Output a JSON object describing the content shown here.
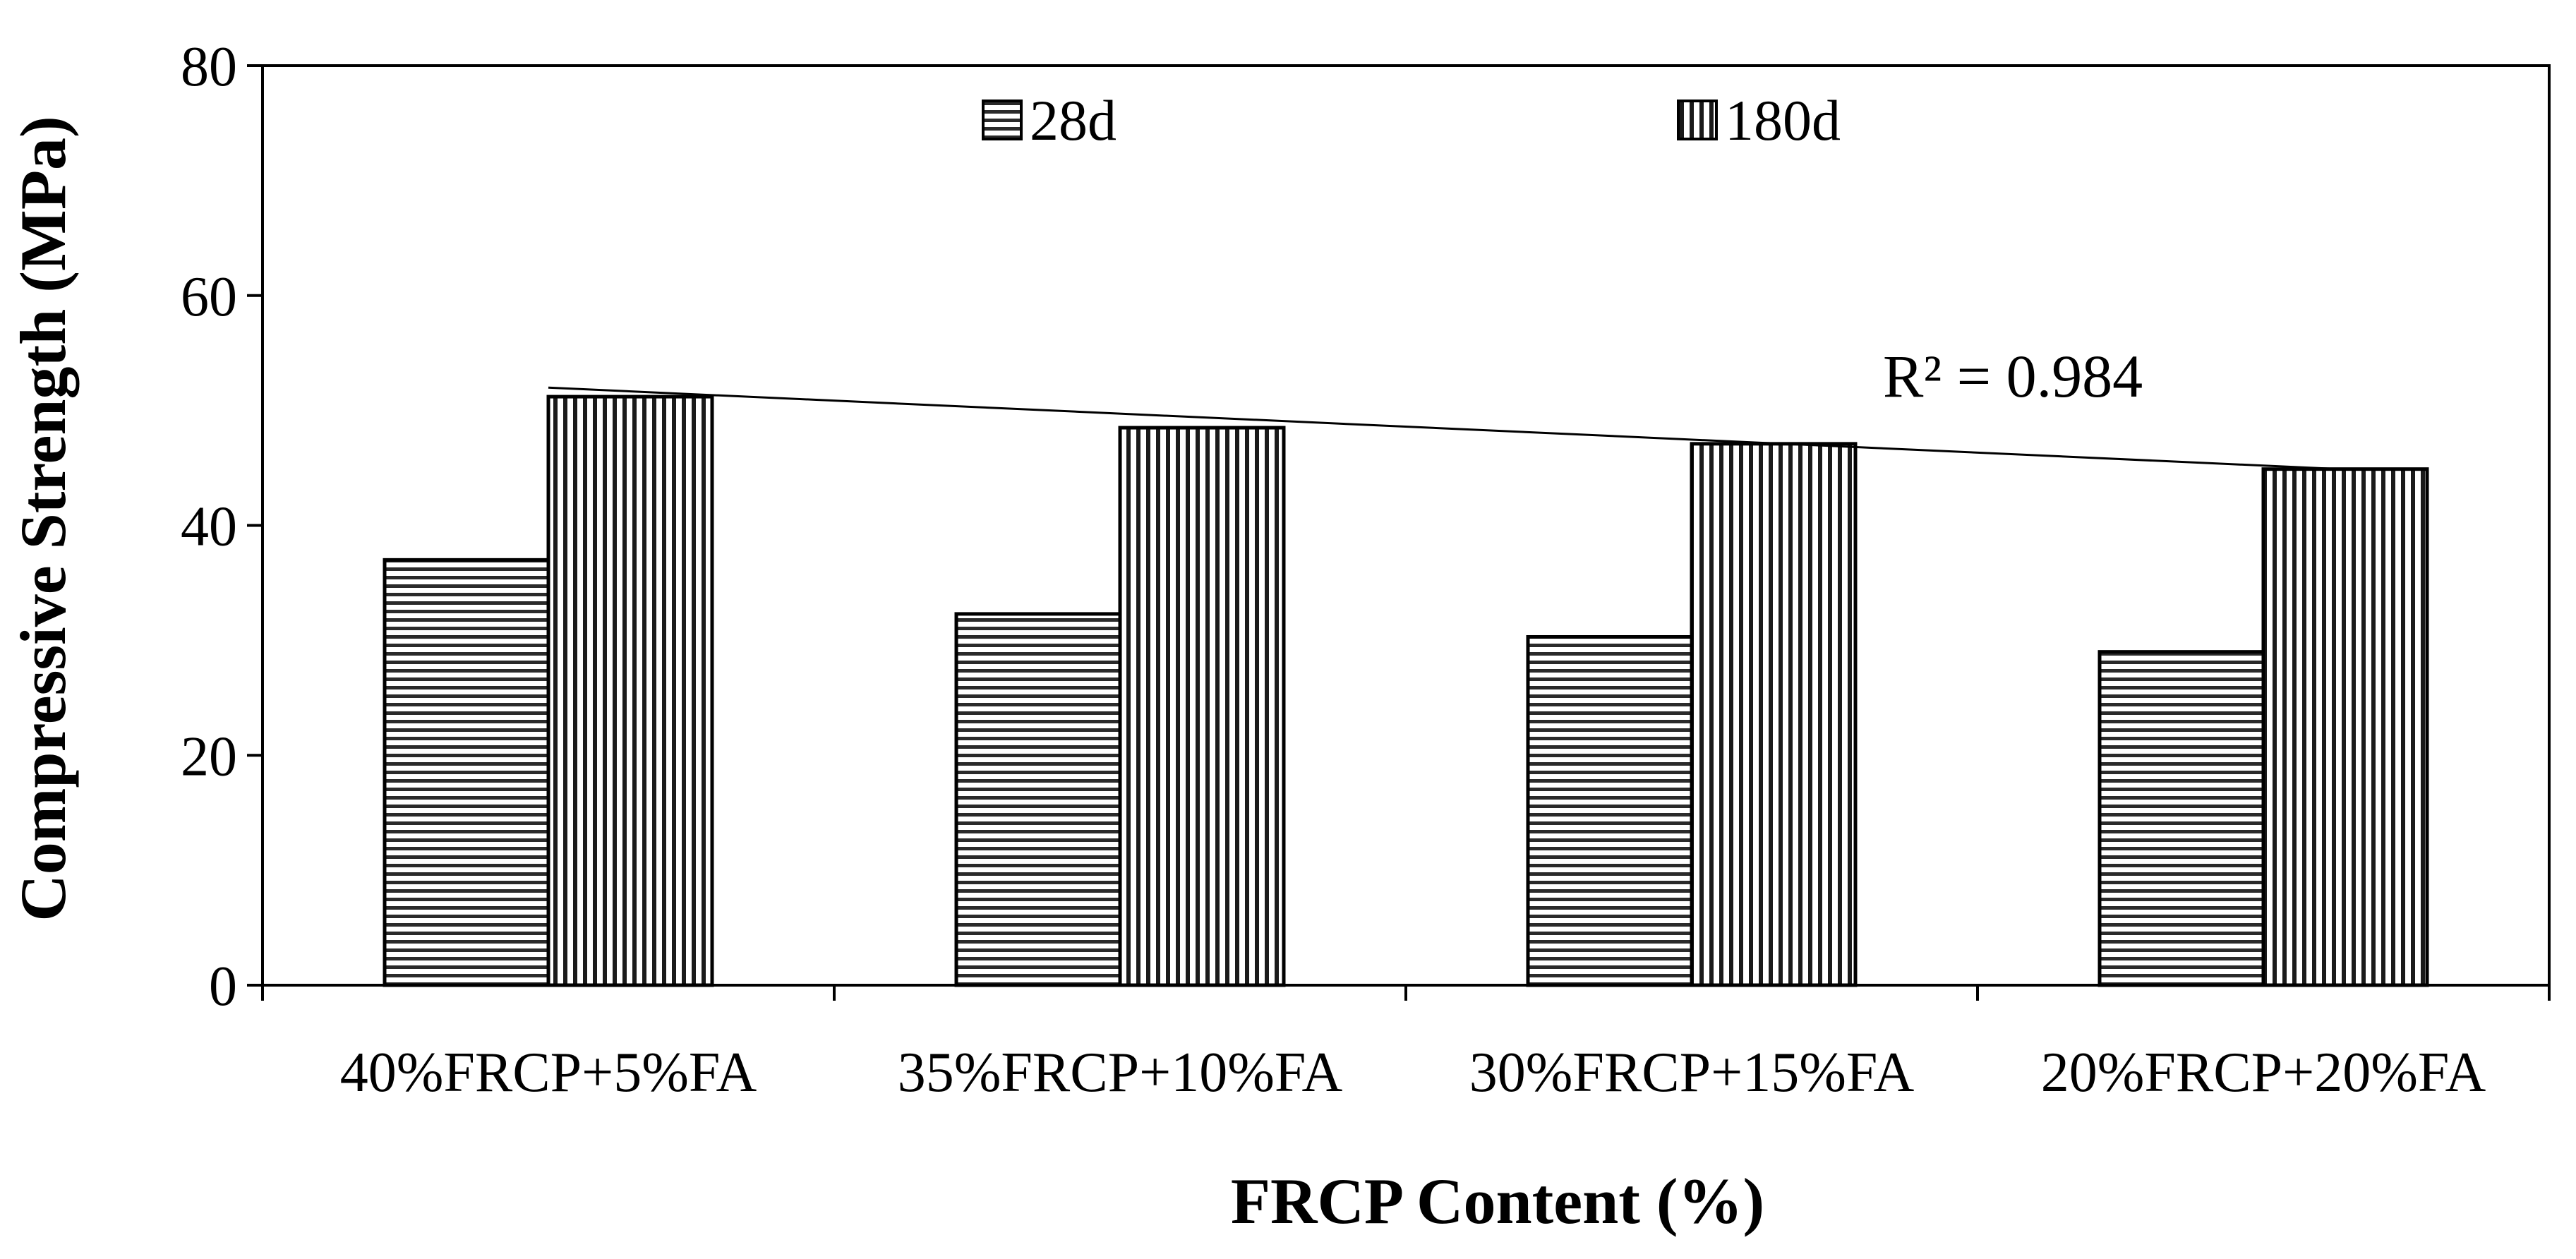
{
  "chart_data": {
    "type": "bar",
    "title": "",
    "xlabel": "FRCP Content (%)",
    "ylabel": "Compressive Strength (MPa)",
    "ylim": [
      0,
      80
    ],
    "yticks": [
      "0",
      "20",
      "40",
      "60",
      "80"
    ],
    "categories": [
      "40%FRCP+5%FA",
      "35%FRCP+10%FA",
      "30%FRCP+15%FA",
      "20%FRCP+20%FA"
    ],
    "series": [
      {
        "name": "28d",
        "values": [
          37.0,
          32.3,
          30.3,
          29.0
        ],
        "pattern": "horizontal-stripes"
      },
      {
        "name": "180d",
        "values": [
          51.2,
          48.5,
          47.1,
          44.9
        ],
        "pattern": "vertical-stripes"
      }
    ],
    "trendline": {
      "series": "180d",
      "type": "linear",
      "label": "R² = 0.984"
    },
    "legend": {
      "position": "top-center"
    },
    "grid": false,
    "colors": {
      "stroke": "#000000",
      "stripe_dark": "#1a1a1a",
      "stripe_light": "#ffffff",
      "background": "#ffffff"
    }
  }
}
